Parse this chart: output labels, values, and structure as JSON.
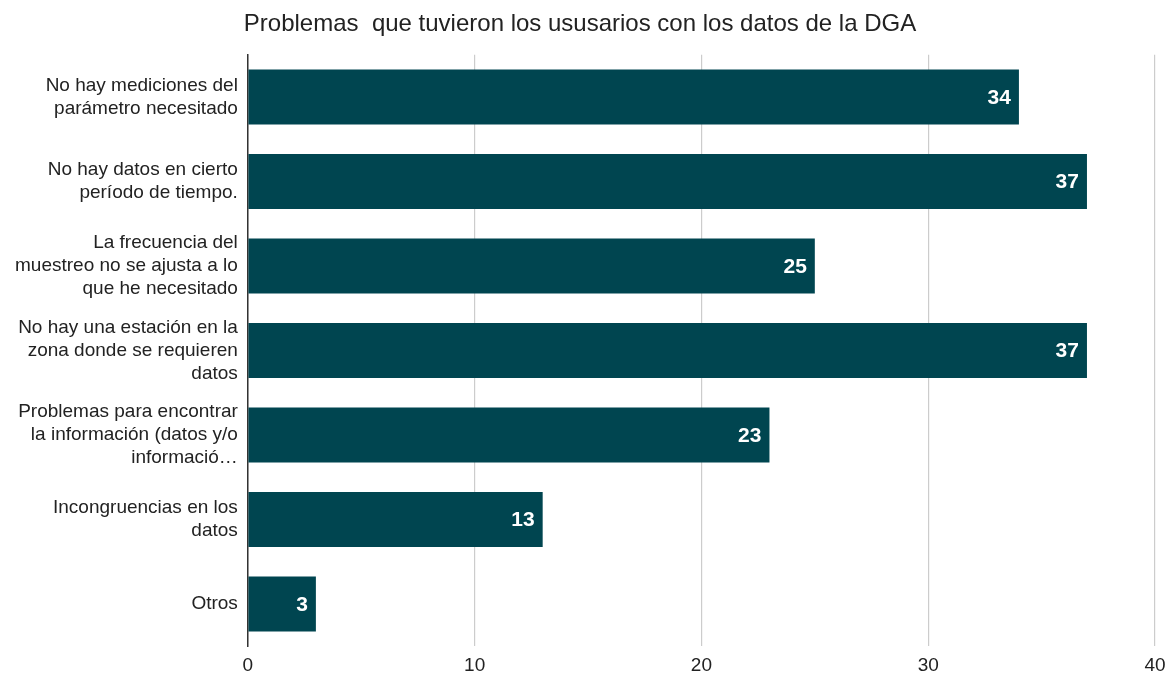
{
  "chart_data": {
    "type": "bar",
    "orientation": "horizontal",
    "title": "Problemas  que tuvieron los ususarios con los datos de la DGA",
    "categories": [
      "No hay mediciones del parámetro necesitado",
      "No hay datos en cierto período de tiempo.",
      "La frecuencia del muestreo no se ajusta a lo que he necesitado",
      "No hay una estación en la zona donde se requieren datos",
      "Problemas para encontrar la información (datos y/o informació…",
      "Incongruencias en los datos",
      "Otros"
    ],
    "values": [
      34,
      37,
      25,
      37,
      23,
      13,
      3
    ],
    "color": "#004550",
    "xlim": [
      0,
      40
    ],
    "xticks": [
      0,
      10,
      20,
      30,
      40
    ],
    "grid": "x",
    "legend": false,
    "data_labels": true
  }
}
